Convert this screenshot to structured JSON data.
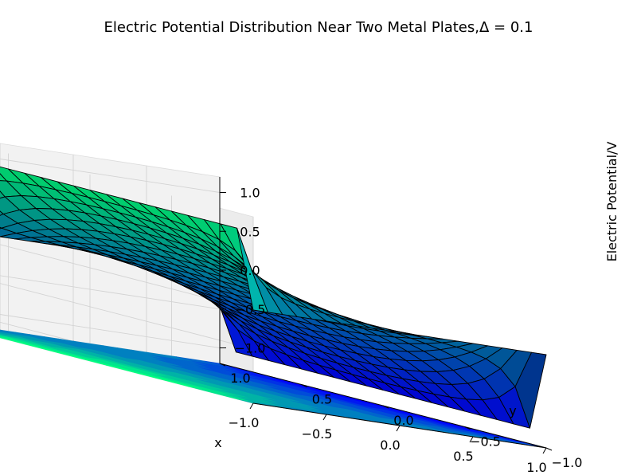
{
  "chart_data": {
    "type": "surface3d",
    "title": "Electric Potential Distribution Near Two Metal Plates,",
    "title_math": "Δ = 0.1",
    "xlabel": "x",
    "ylabel": "y",
    "zlabel": "Electric Potential/V",
    "xlim": [
      -1.0,
      1.0
    ],
    "ylim": [
      -1.0,
      1.0
    ],
    "zlim": [
      -1.2,
      1.2
    ],
    "x_ticks": [
      "−1.0",
      "−0.5",
      "0.0",
      "0.5",
      "1.0"
    ],
    "x_tick_values": [
      -1.0,
      -0.5,
      0.0,
      0.5,
      1.0
    ],
    "y_ticks": [
      "−1.0",
      "−0.5",
      "0.0",
      "0.5",
      "1.0"
    ],
    "y_tick_values": [
      -1.0,
      -0.5,
      0.0,
      0.5,
      1.0
    ],
    "z_ticks": [
      "−1.0",
      "−0.5",
      "0.0",
      "0.5",
      "1.0"
    ],
    "z_tick_values": [
      -1.0,
      -0.5,
      0.0,
      0.5,
      1.0
    ],
    "grid": true,
    "colormap": [
      "#0000ff",
      "#00ff80"
    ],
    "grid_step": 0.1,
    "plates": [
      {
        "x": -1.0,
        "potential": 1.0
      },
      {
        "x": 1.0,
        "potential": -1.0
      }
    ],
    "boundary_potential": 0.0,
    "contour_projection_z": -1.2
  }
}
